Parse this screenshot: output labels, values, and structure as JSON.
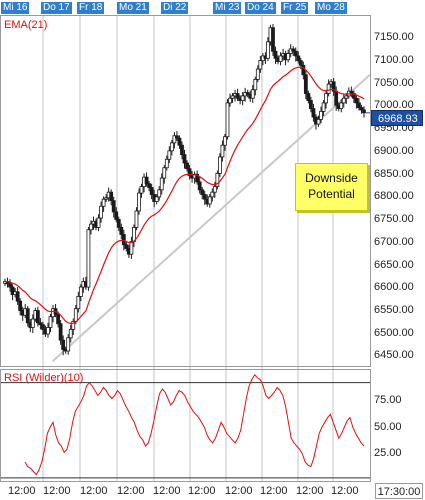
{
  "chart_data": [
    {
      "type": "candlestick",
      "indicator_label": "EMA(21)",
      "date_tabs": [
        "Mi 16",
        "Do 17",
        "Fr 18",
        "Mo 21",
        "Di 22",
        "Mi 23",
        "Do 24",
        "Fr 25",
        "Mo 28"
      ],
      "x_tick_labels": [
        "12:00",
        "12:00",
        "12:00",
        "12:00",
        "12:00",
        "12:00",
        "12:00",
        "12:00",
        "12:00",
        "12:00"
      ],
      "time_readout": "17:30:00",
      "y_ticks": [
        "7150.00",
        "7100.00",
        "7050.00",
        "7000.00",
        "6950.00",
        "6900.00",
        "6850.00",
        "6800.00",
        "6750.00",
        "6700.00",
        "6650.00",
        "6600.00",
        "6550.00",
        "6500.00",
        "6450.00"
      ],
      "ylim": [
        6430,
        7175
      ],
      "last_price": "6968.93",
      "annotation": [
        "Downside",
        "Potential"
      ],
      "trendline": [
        [
          0.14,
          6440
        ],
        [
          1.0,
          7050
        ]
      ],
      "closes": [
        6610,
        6605,
        6598,
        6582,
        6588,
        6568,
        6548,
        6538,
        6552,
        6522,
        6512,
        6530,
        6548,
        6522,
        6518,
        6508,
        6498,
        6512,
        6535,
        6552,
        6540,
        6520,
        6485,
        6465,
        6462,
        6490,
        6508,
        6525,
        6552,
        6578,
        6598,
        6610,
        6598,
        6720,
        6732,
        6738,
        6725,
        6745,
        6770,
        6785,
        6788,
        6800,
        6782,
        6758,
        6742,
        6725,
        6710,
        6688,
        6680,
        6668,
        6695,
        6725,
        6760,
        6798,
        6812,
        6832,
        6818,
        6810,
        6795,
        6780,
        6790,
        6805,
        6830,
        6852,
        6870,
        6888,
        6905,
        6920,
        6915,
        6900,
        6880,
        6862,
        6850,
        6835,
        6830,
        6838,
        6822,
        6805,
        6795,
        6785,
        6775,
        6790,
        6800,
        6812,
        6840,
        6875,
        6900,
        6918,
        6990,
        7000,
        7005,
        7010,
        7000,
        6995,
        7005,
        7012,
        7008,
        7000,
        7018,
        7040,
        7062,
        7080,
        7090,
        7085,
        7120,
        7150,
        7100,
        7085,
        7078,
        7090,
        7095,
        7082,
        7095,
        7105,
        7100,
        7090,
        7080,
        7070,
        7050,
        7010,
        6995,
        6978,
        6960,
        6945,
        6955,
        6972,
        6990,
        7010,
        7030,
        7035,
        7015,
        6985,
        6978,
        6990,
        7000,
        7005,
        7015,
        7010,
        7000,
        6990,
        6980,
        6975,
        6968.93
      ],
      "ema_label_color": "#d11111",
      "up_color": "#ffffff",
      "down_color": "#1a1a1a",
      "ema_color": "#e01010",
      "trend_color": "#c8c8c8"
    },
    {
      "type": "line",
      "indicator_label": "RSI (Wilder)(10)",
      "y_ticks": [
        "75.00",
        "50.00",
        "25.00"
      ],
      "ylim": [
        18,
        88
      ],
      "levels": [
        80,
        20
      ],
      "values": [
        30,
        27,
        26,
        24,
        22,
        25,
        30,
        38,
        48,
        52,
        55,
        47,
        42,
        40,
        36,
        38,
        45,
        55,
        62,
        65,
        68,
        72,
        78,
        80,
        78,
        75,
        72,
        74,
        77,
        75,
        72,
        70,
        72,
        75,
        73,
        69,
        65,
        62,
        58,
        55,
        50,
        46,
        44,
        40,
        42,
        48,
        56,
        65,
        73,
        76,
        74,
        70,
        66,
        68,
        72,
        75,
        74,
        72,
        68,
        65,
        62,
        60,
        58,
        55,
        52,
        47,
        44,
        42,
        45,
        50,
        55,
        52,
        48,
        46,
        44,
        42,
        45,
        50,
        60,
        70,
        78,
        82,
        85,
        83,
        82,
        78,
        72,
        70,
        72,
        74,
        77,
        75,
        72,
        65,
        55,
        45,
        42,
        40,
        38,
        35,
        30,
        28,
        27,
        32,
        40,
        48,
        52,
        55,
        58,
        60,
        55,
        50,
        45,
        48,
        52,
        56,
        58,
        52,
        48,
        45,
        42,
        40
      ],
      "line_color": "#e01010"
    }
  ]
}
